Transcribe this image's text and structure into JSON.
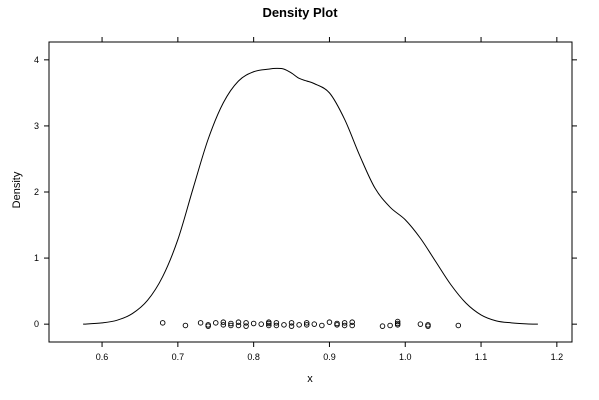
{
  "chart_data": {
    "type": "line",
    "title": "Density Plot",
    "xlabel": "x",
    "ylabel": "Density",
    "xlim": [
      0.53,
      1.22
    ],
    "ylim": [
      -0.27,
      4.27
    ],
    "x_ticks": [
      0.6,
      0.7,
      0.8,
      0.9,
      1.0,
      1.1,
      1.2
    ],
    "x_tick_labels": [
      "0.6",
      "0.7",
      "0.8",
      "0.9",
      "1.0",
      "1.1",
      "1.2"
    ],
    "y_ticks": [
      0,
      1,
      2,
      3,
      4
    ],
    "y_tick_labels": [
      "0",
      "1",
      "2",
      "3",
      "4"
    ],
    "grid": false,
    "series": [
      {
        "kind": "density-curve",
        "x": [
          0.575,
          0.6,
          0.62,
          0.64,
          0.66,
          0.68,
          0.7,
          0.72,
          0.74,
          0.76,
          0.78,
          0.8,
          0.82,
          0.83,
          0.84,
          0.85,
          0.86,
          0.87,
          0.88,
          0.9,
          0.92,
          0.94,
          0.96,
          0.98,
          1.0,
          1.02,
          1.04,
          1.06,
          1.08,
          1.1,
          1.12,
          1.14,
          1.16,
          1.175
        ],
        "y": [
          0.0,
          0.02,
          0.06,
          0.16,
          0.36,
          0.72,
          1.28,
          2.05,
          2.8,
          3.35,
          3.68,
          3.82,
          3.86,
          3.87,
          3.86,
          3.8,
          3.72,
          3.68,
          3.64,
          3.5,
          3.1,
          2.55,
          2.06,
          1.77,
          1.58,
          1.3,
          0.95,
          0.6,
          0.32,
          0.14,
          0.05,
          0.02,
          0.005,
          0.0
        ]
      },
      {
        "kind": "rug-points",
        "x": [
          0.68,
          0.71,
          0.73,
          0.74,
          0.74,
          0.75,
          0.76,
          0.76,
          0.77,
          0.77,
          0.78,
          0.78,
          0.79,
          0.79,
          0.8,
          0.81,
          0.82,
          0.82,
          0.82,
          0.83,
          0.83,
          0.84,
          0.85,
          0.85,
          0.86,
          0.87,
          0.87,
          0.88,
          0.89,
          0.9,
          0.91,
          0.91,
          0.92,
          0.92,
          0.93,
          0.93,
          0.97,
          0.98,
          0.99,
          0.99,
          0.99,
          1.02,
          1.03,
          1.03,
          1.07
        ],
        "y": [
          0.02,
          -0.02,
          0.02,
          -0.01,
          -0.03,
          0.02,
          0.03,
          -0.01,
          0.01,
          -0.02,
          0.03,
          -0.02,
          0.02,
          -0.03,
          0.01,
          0.0,
          0.03,
          -0.02,
          0.01,
          0.02,
          -0.02,
          -0.01,
          0.02,
          -0.03,
          -0.01,
          0.02,
          -0.01,
          0.0,
          -0.02,
          0.03,
          0.01,
          -0.01,
          0.02,
          -0.02,
          0.03,
          -0.02,
          -0.03,
          -0.02,
          0.04,
          0.01,
          -0.01,
          0.0,
          -0.01,
          -0.03,
          -0.02
        ]
      }
    ],
    "colors": {
      "line": "#000000",
      "points": "#000000",
      "frame": "#000000",
      "background": "#ffffff"
    }
  }
}
